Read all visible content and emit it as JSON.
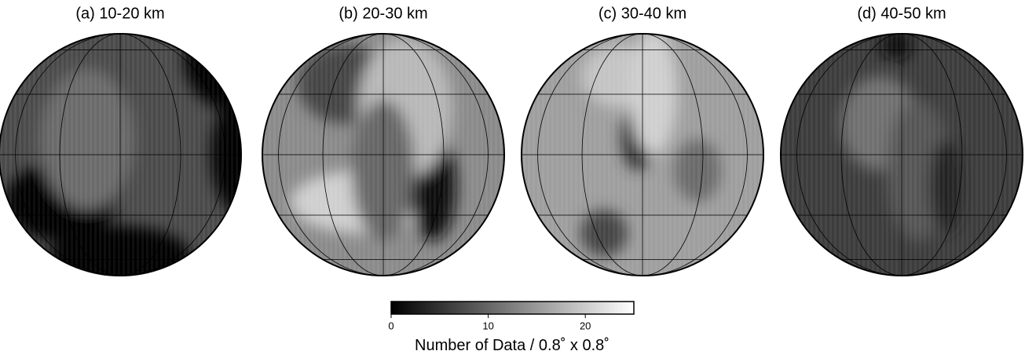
{
  "panels": [
    {
      "title": "(a) 10-20 km"
    },
    {
      "title": "(b) 20-30 km"
    },
    {
      "title": "(c) 30-40 km"
    },
    {
      "title": "(d) 40-50 km"
    }
  ],
  "colorbar": {
    "label": "Number of Data / 0.8˚ x 0.8˚",
    "lim": [
      0,
      25
    ],
    "ticks": [
      0,
      10,
      20
    ]
  }
}
